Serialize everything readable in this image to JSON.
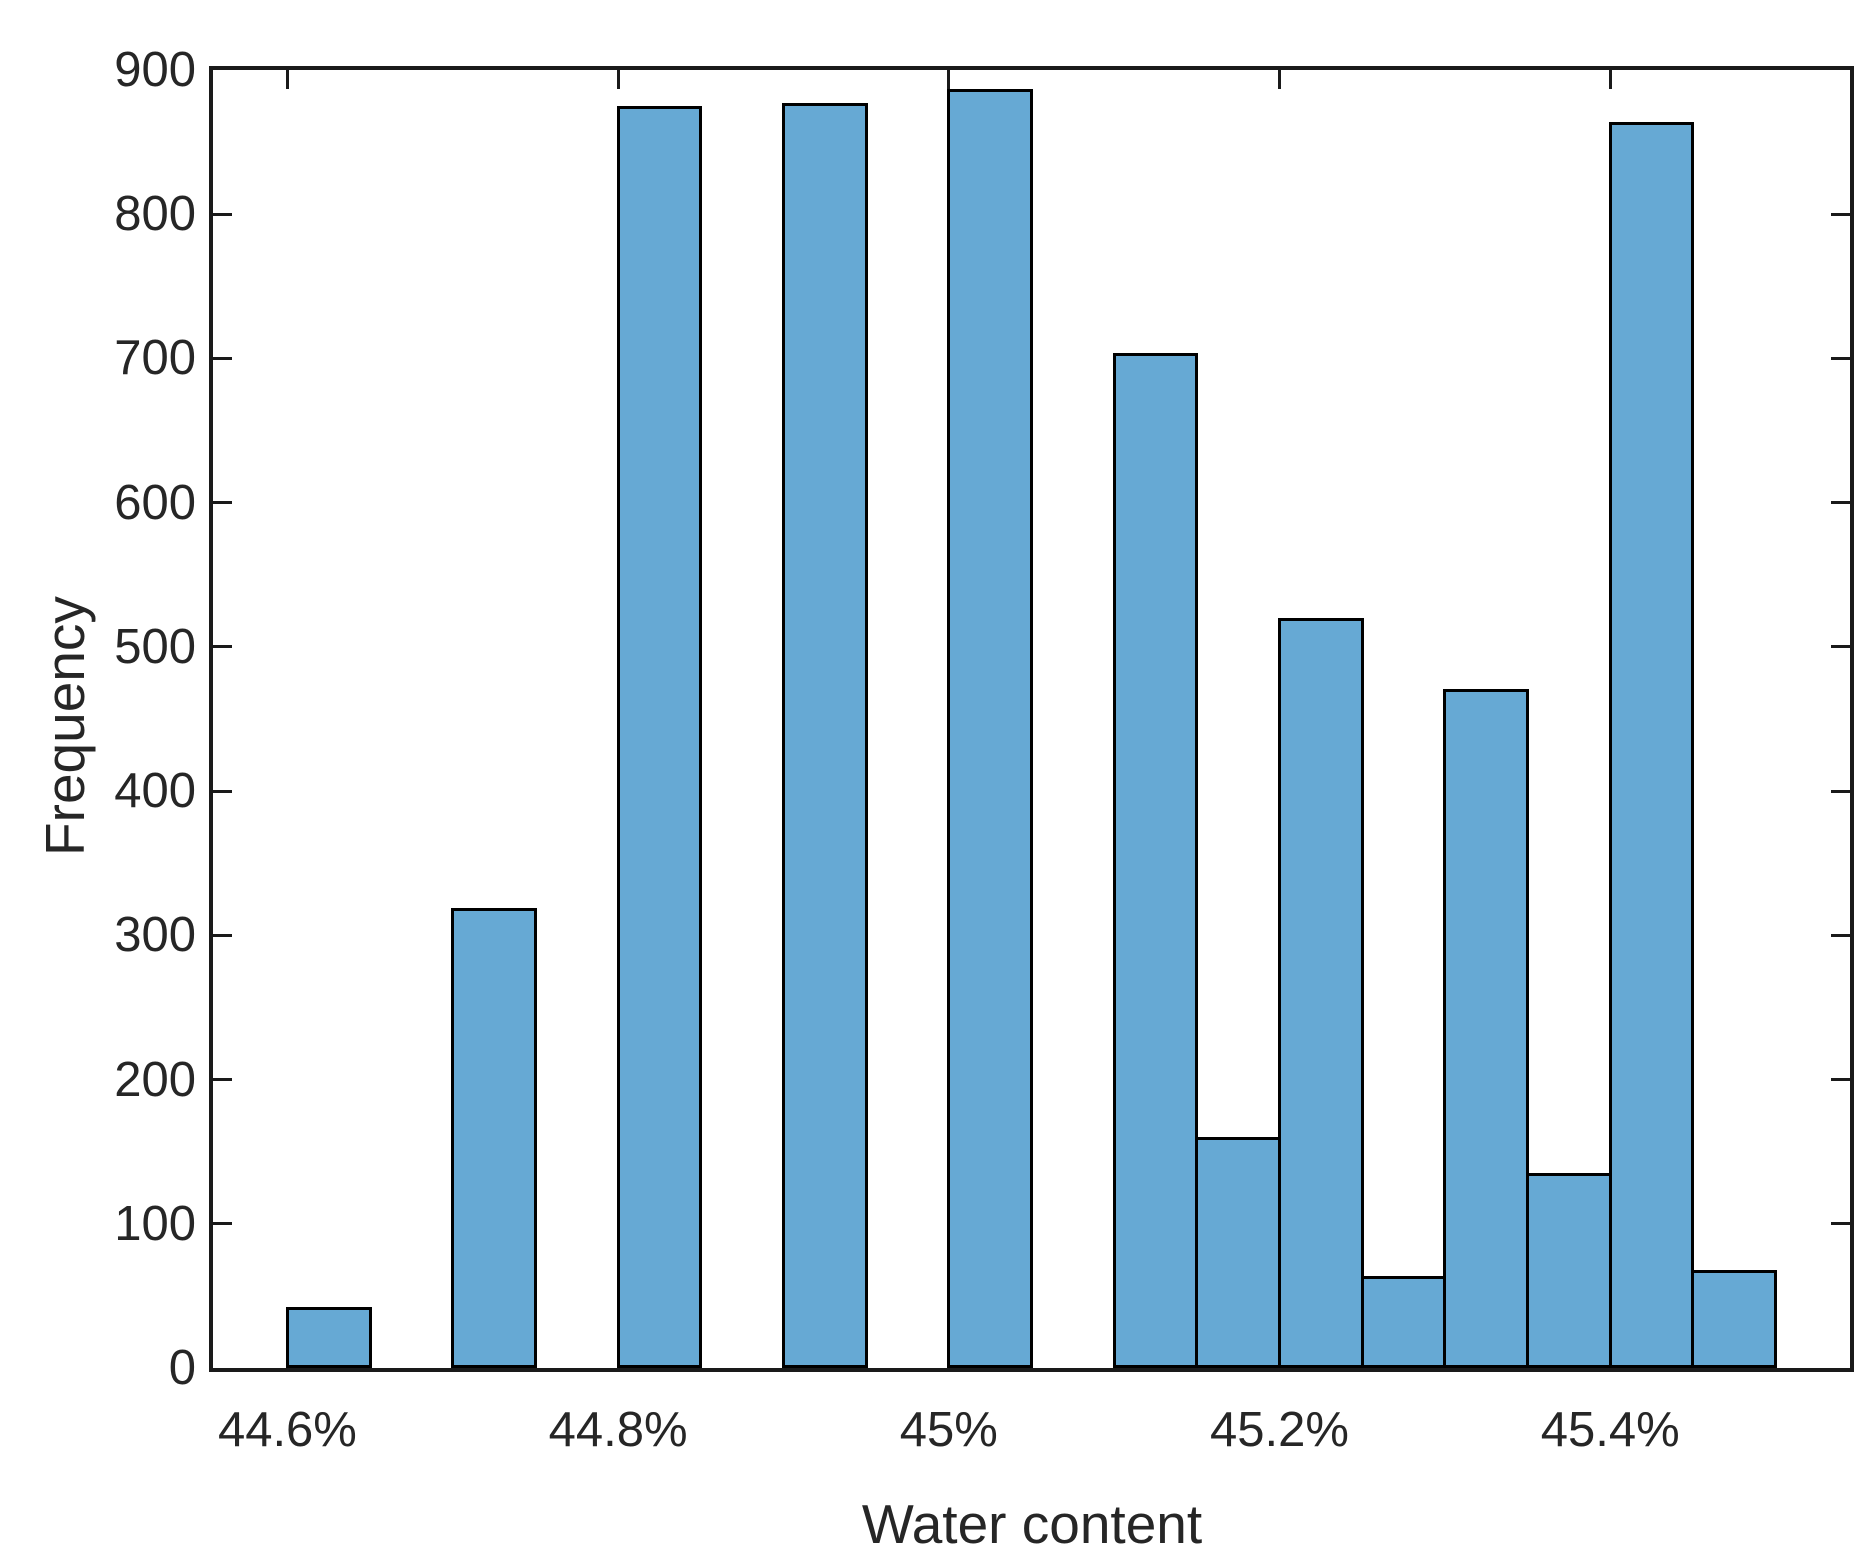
{
  "chart_data": {
    "type": "bar",
    "subtype": "histogram",
    "title": "",
    "xlabel": "Water content",
    "ylabel": "Frequency",
    "xlim": [
      44.555,
      45.545
    ],
    "ylim": [
      0,
      900
    ],
    "grid": false,
    "legend": "none",
    "x_ticks": [
      {
        "value": 44.6,
        "label": "44.6%"
      },
      {
        "value": 44.8,
        "label": "44.8%"
      },
      {
        "value": 45.0,
        "label": "45%"
      },
      {
        "value": 45.2,
        "label": "45.2%"
      },
      {
        "value": 45.4,
        "label": "45.4%"
      }
    ],
    "y_ticks": [
      0,
      100,
      200,
      300,
      400,
      500,
      600,
      700,
      800,
      900
    ],
    "bin_width": 0.05,
    "bins": [
      {
        "start": 44.6,
        "end": 44.65,
        "count": 42
      },
      {
        "start": 44.65,
        "end": 44.7,
        "count": 0
      },
      {
        "start": 44.7,
        "end": 44.75,
        "count": 319
      },
      {
        "start": 44.75,
        "end": 44.8,
        "count": 0
      },
      {
        "start": 44.8,
        "end": 44.85,
        "count": 875
      },
      {
        "start": 44.85,
        "end": 44.9,
        "count": 0
      },
      {
        "start": 44.9,
        "end": 44.95,
        "count": 877
      },
      {
        "start": 44.95,
        "end": 45.0,
        "count": 0
      },
      {
        "start": 45.0,
        "end": 45.05,
        "count": 887
      },
      {
        "start": 45.05,
        "end": 45.1,
        "count": 0
      },
      {
        "start": 45.1,
        "end": 45.15,
        "count": 704
      },
      {
        "start": 45.15,
        "end": 45.2,
        "count": 160
      },
      {
        "start": 45.2,
        "end": 45.25,
        "count": 520
      },
      {
        "start": 45.25,
        "end": 45.3,
        "count": 64
      },
      {
        "start": 45.3,
        "end": 45.35,
        "count": 471
      },
      {
        "start": 45.35,
        "end": 45.4,
        "count": 135
      },
      {
        "start": 45.4,
        "end": 45.45,
        "count": 864
      },
      {
        "start": 45.45,
        "end": 45.5,
        "count": 68
      }
    ],
    "colors": {
      "bar_face": "#66A9D4",
      "bar_edge": "#000000",
      "axis": "#1A1A1A",
      "text": "#262626",
      "background": "#FFFFFF"
    }
  }
}
